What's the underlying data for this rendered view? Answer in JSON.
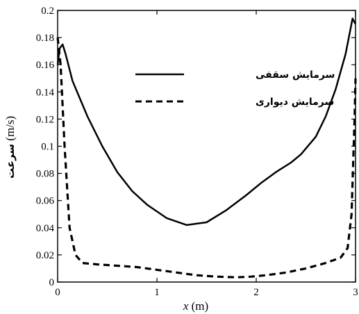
{
  "chart_data": {
    "type": "line",
    "xlabel_var": "x",
    "xlabel_unit": "(m)",
    "ylabel_word": "سرعت",
    "ylabel_unit": "(m/s)",
    "xlim": [
      0,
      3
    ],
    "ylim": [
      0,
      0.2
    ],
    "x_ticks": [
      "0",
      "1",
      "2",
      "3"
    ],
    "y_ticks": [
      "0",
      "0.02",
      "0.04",
      "0.06",
      "0.08",
      "0.1",
      "0.12",
      "0.14",
      "0.16",
      "0.18",
      "0.2"
    ],
    "grid": false,
    "legend_position": "top-right",
    "series": [
      {
        "name": "سرمایش سقفی",
        "style": "solid",
        "color": "#000000",
        "points": [
          [
            0,
            0.16
          ],
          [
            0.02,
            0.172
          ],
          [
            0.05,
            0.175
          ],
          [
            0.08,
            0.168
          ],
          [
            0.15,
            0.148
          ],
          [
            0.3,
            0.122
          ],
          [
            0.45,
            0.1
          ],
          [
            0.6,
            0.081
          ],
          [
            0.75,
            0.067
          ],
          [
            0.9,
            0.057
          ],
          [
            1.1,
            0.047
          ],
          [
            1.3,
            0.042
          ],
          [
            1.5,
            0.044
          ],
          [
            1.7,
            0.053
          ],
          [
            1.9,
            0.064
          ],
          [
            2.05,
            0.073
          ],
          [
            2.2,
            0.081
          ],
          [
            2.35,
            0.088
          ],
          [
            2.45,
            0.094
          ],
          [
            2.6,
            0.107
          ],
          [
            2.7,
            0.122
          ],
          [
            2.8,
            0.142
          ],
          [
            2.9,
            0.168
          ],
          [
            2.97,
            0.194
          ],
          [
            3.0,
            0.19
          ]
        ]
      },
      {
        "name": "سرمایش دیواری",
        "style": "dashed",
        "color": "#000000",
        "points": [
          [
            0.0,
            0.18
          ],
          [
            0.03,
            0.16
          ],
          [
            0.07,
            0.1
          ],
          [
            0.12,
            0.04
          ],
          [
            0.18,
            0.02
          ],
          [
            0.25,
            0.014
          ],
          [
            0.4,
            0.013
          ],
          [
            0.6,
            0.012
          ],
          [
            0.8,
            0.011
          ],
          [
            1.0,
            0.009
          ],
          [
            1.2,
            0.007
          ],
          [
            1.4,
            0.005
          ],
          [
            1.6,
            0.004
          ],
          [
            1.8,
            0.0035
          ],
          [
            1.95,
            0.004
          ],
          [
            2.1,
            0.005
          ],
          [
            2.3,
            0.007
          ],
          [
            2.5,
            0.01
          ],
          [
            2.7,
            0.014
          ],
          [
            2.85,
            0.018
          ],
          [
            2.92,
            0.025
          ],
          [
            2.96,
            0.05
          ],
          [
            2.99,
            0.12
          ],
          [
            3.0,
            0.15
          ]
        ]
      }
    ]
  }
}
